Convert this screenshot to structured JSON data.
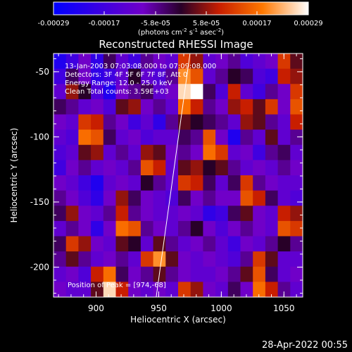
{
  "colorbar": {
    "ticks": [
      "-0.00029",
      "-0.00017",
      "-5.8e-05",
      "5.8e-05",
      "0.00017",
      "0.00029"
    ],
    "units_line1": "(photons cm",
    "units_sup1": "-2",
    "units_mid1": " s",
    "units_sup2": "-1",
    "units_mid2": " asec",
    "units_sup3": "-2",
    "units_end": ")",
    "colors": [
      "#0000ff",
      "#7000c8",
      "#280028",
      "#c81e00",
      "#ff7800",
      "#ffffff"
    ]
  },
  "plot": {
    "title": "Reconstructed RHESSI Image",
    "xlabel": "Heliocentric X (arcsec)",
    "ylabel": "Heliocentric Y (arcsec)",
    "xticks": [
      "900",
      "950",
      "1000",
      "1050"
    ],
    "yticks": [
      "-50",
      "-100",
      "-150",
      "-200"
    ],
    "annotation": [
      "13-Jan-2003 07:03:08.000 to 07:09:08.000",
      "Detectors: 3F 4F 5F 6F 7F 8F, Att 0",
      "Energy Range: 12.0 - 25.0 keV",
      "Clean     Total counts: 3.59E+03"
    ],
    "peak_label": "Position of Peak = [974,-68]"
  },
  "footer": {
    "date": "28-Apr-2022 00:55"
  },
  "chart_data": {
    "type": "heatmap",
    "title": "Reconstructed RHESSI Image",
    "xlabel": "Heliocentric X (arcsec)",
    "ylabel": "Heliocentric Y (arcsec)",
    "xlim": [
      866,
      1065
    ],
    "ylim": [
      -223,
      -36
    ],
    "colorbar_range": [
      -0.00029,
      0.00029
    ],
    "colorbar_units": "photons cm^-2 s^-1 asec^-2",
    "peak": {
      "x": 974,
      "y": -68
    },
    "limb_line": {
      "x": [
        975,
        948
      ],
      "y": [
        -36,
        -223
      ]
    },
    "grid": [
      [
        0.1,
        0.2,
        0.35,
        0.15,
        0.45,
        0.3,
        0.2,
        0.4,
        0.35,
        0.3,
        0.7,
        0.6,
        0.3,
        0.35,
        0.4,
        0.25,
        0.3,
        0.35,
        0.7,
        0.55
      ],
      [
        0.2,
        0.45,
        0.35,
        0.15,
        0.2,
        0.3,
        0.5,
        0.3,
        0.25,
        0.4,
        0.85,
        0.75,
        0.3,
        0.4,
        0.5,
        0.45,
        0.25,
        0.2,
        0.65,
        0.6
      ],
      [
        0.3,
        0.6,
        0.5,
        0.25,
        0.1,
        0.35,
        0.4,
        0.45,
        0.3,
        0.35,
        0.95,
        1.0,
        0.45,
        0.25,
        0.65,
        0.3,
        0.2,
        0.4,
        0.35,
        0.7
      ],
      [
        0.45,
        0.4,
        0.3,
        0.35,
        0.25,
        0.55,
        0.6,
        0.35,
        0.4,
        0.3,
        0.8,
        0.65,
        0.4,
        0.35,
        0.6,
        0.65,
        0.55,
        0.7,
        0.35,
        0.75
      ],
      [
        0.35,
        0.3,
        0.7,
        0.65,
        0.4,
        0.35,
        0.2,
        0.3,
        0.15,
        0.4,
        0.55,
        0.5,
        0.45,
        0.4,
        0.3,
        0.6,
        0.55,
        0.4,
        0.3,
        0.65
      ],
      [
        0.3,
        0.25,
        0.8,
        0.75,
        0.45,
        0.3,
        0.35,
        0.25,
        0.3,
        0.3,
        0.45,
        0.4,
        0.75,
        0.35,
        0.1,
        0.4,
        0.3,
        0.55,
        0.3,
        0.4
      ],
      [
        0.25,
        0.3,
        0.55,
        0.6,
        0.3,
        0.4,
        0.3,
        0.6,
        0.55,
        0.35,
        0.4,
        0.35,
        0.8,
        0.7,
        0.3,
        0.35,
        0.2,
        0.4,
        0.45,
        0.3
      ],
      [
        0.2,
        0.35,
        0.4,
        0.3,
        0.35,
        0.3,
        0.4,
        0.75,
        0.65,
        0.3,
        0.55,
        0.6,
        0.5,
        0.55,
        0.4,
        0.3,
        0.35,
        0.3,
        0.4,
        0.35
      ],
      [
        0.35,
        0.3,
        0.2,
        0.1,
        0.3,
        0.35,
        0.3,
        0.5,
        0.4,
        0.3,
        0.7,
        0.65,
        0.45,
        0.3,
        0.45,
        0.7,
        0.4,
        0.35,
        0.3,
        0.3
      ],
      [
        0.4,
        0.35,
        0.25,
        0.15,
        0.35,
        0.6,
        0.45,
        0.35,
        0.3,
        0.25,
        0.45,
        0.35,
        0.4,
        0.35,
        0.35,
        0.75,
        0.65,
        0.45,
        0.3,
        0.25
      ],
      [
        0.45,
        0.6,
        0.35,
        0.3,
        0.4,
        0.65,
        0.4,
        0.35,
        0.3,
        0.3,
        0.35,
        0.3,
        0.15,
        0.2,
        0.45,
        0.55,
        0.35,
        0.3,
        0.65,
        0.6
      ],
      [
        0.3,
        0.4,
        0.35,
        0.15,
        0.35,
        0.8,
        0.75,
        0.4,
        0.35,
        0.3,
        0.4,
        0.5,
        0.35,
        0.25,
        0.35,
        0.4,
        0.35,
        0.3,
        0.75,
        0.7
      ],
      [
        0.45,
        0.7,
        0.6,
        0.35,
        0.3,
        0.55,
        0.5,
        0.3,
        0.55,
        0.4,
        0.3,
        0.35,
        0.4,
        0.3,
        0.2,
        0.35,
        0.3,
        0.4,
        0.5,
        0.4
      ],
      [
        0.4,
        0.55,
        0.4,
        0.3,
        0.35,
        0.4,
        0.3,
        0.7,
        0.85,
        0.55,
        0.35,
        0.3,
        0.35,
        0.3,
        0.25,
        0.4,
        0.7,
        0.55,
        0.3,
        0.3
      ],
      [
        0.3,
        0.35,
        0.25,
        0.65,
        0.8,
        0.45,
        0.35,
        0.4,
        0.55,
        0.4,
        0.35,
        0.3,
        0.3,
        0.35,
        0.4,
        0.55,
        0.75,
        0.45,
        0.3,
        0.35
      ],
      [
        0.35,
        0.3,
        0.3,
        0.55,
        0.95,
        0.65,
        0.35,
        0.3,
        0.35,
        0.3,
        0.7,
        0.6,
        0.35,
        0.3,
        0.45,
        0.35,
        0.8,
        0.65,
        0.4,
        0.3
      ]
    ]
  }
}
